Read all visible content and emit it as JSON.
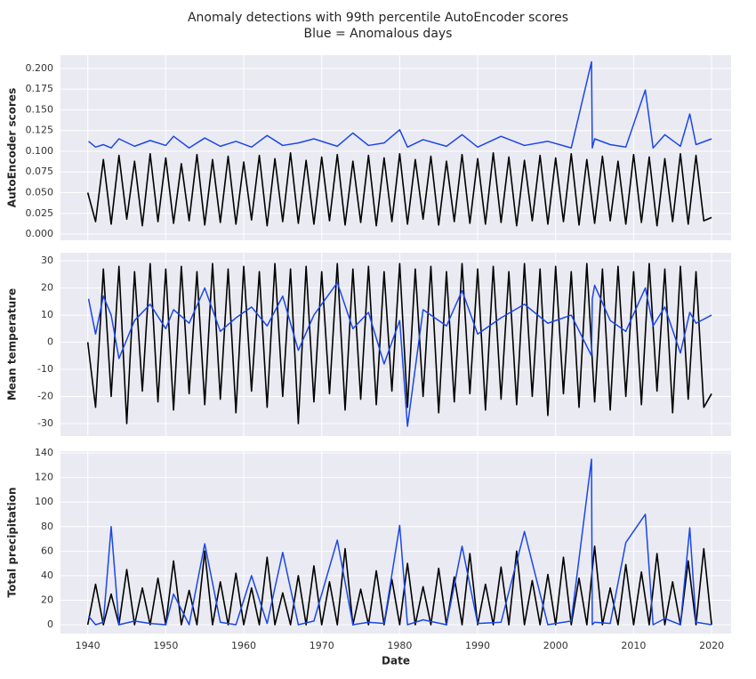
{
  "title": "Anomaly detections with 99th percentile AutoEncoder scores",
  "subtitle": "Blue = Anomalous days",
  "chart_data": [
    {
      "type": "line",
      "ylabel": "AutoEncoder scores",
      "grid": true,
      "show_xticklabels": false,
      "xlim": [
        1936.5,
        2022.5
      ],
      "xticks": [
        1940,
        1950,
        1960,
        1970,
        1980,
        1990,
        2000,
        2010,
        2020
      ],
      "ylim": [
        -0.0075,
        0.216
      ],
      "yticks": [
        {
          "value": 0,
          "label": "0.000"
        },
        {
          "value": 0.025,
          "label": "0.025"
        },
        {
          "value": 0.05,
          "label": "0.050"
        },
        {
          "value": 0.075,
          "label": "0.075"
        },
        {
          "value": 0.1,
          "label": "0.100"
        },
        {
          "value": 0.125,
          "label": "0.125"
        },
        {
          "value": 0.15,
          "label": "0.150"
        },
        {
          "value": 0.175,
          "label": "0.175"
        },
        {
          "value": 0.2,
          "label": "0.200"
        }
      ],
      "series": [
        {
          "color": "#000000",
          "x": [
            1940,
            1941,
            1942,
            1943,
            1944,
            1945,
            1946,
            1947,
            1948,
            1949,
            1950,
            1951,
            1952,
            1953,
            1954,
            1955,
            1956,
            1957,
            1958,
            1959,
            1960,
            1961,
            1962,
            1963,
            1964,
            1965,
            1966,
            1967,
            1968,
            1969,
            1970,
            1971,
            1972,
            1973,
            1974,
            1975,
            1976,
            1977,
            1978,
            1979,
            1980,
            1981,
            1982,
            1983,
            1984,
            1985,
            1986,
            1987,
            1988,
            1989,
            1990,
            1991,
            1992,
            1993,
            1994,
            1995,
            1996,
            1997,
            1998,
            1999,
            2000,
            2001,
            2002,
            2003,
            2004,
            2005,
            2006,
            2007,
            2008,
            2009,
            2010,
            2011,
            2012,
            2013,
            2014,
            2015,
            2016,
            2017,
            2018,
            2019,
            2020
          ],
          "values": [
            0.05,
            0.015,
            0.09,
            0.012,
            0.095,
            0.018,
            0.088,
            0.01,
            0.097,
            0.015,
            0.092,
            0.013,
            0.085,
            0.016,
            0.096,
            0.011,
            0.09,
            0.014,
            0.094,
            0.012,
            0.087,
            0.017,
            0.095,
            0.01,
            0.091,
            0.015,
            0.098,
            0.013,
            0.089,
            0.012,
            0.093,
            0.016,
            0.096,
            0.011,
            0.088,
            0.014,
            0.095,
            0.01,
            0.092,
            0.015,
            0.097,
            0.012,
            0.09,
            0.018,
            0.094,
            0.011,
            0.088,
            0.015,
            0.096,
            0.013,
            0.091,
            0.012,
            0.098,
            0.014,
            0.093,
            0.01,
            0.089,
            0.016,
            0.095,
            0.012,
            0.092,
            0.015,
            0.097,
            0.011,
            0.09,
            0.013,
            0.094,
            0.016,
            0.088,
            0.012,
            0.096,
            0.014,
            0.093,
            0.01,
            0.091,
            0.015,
            0.097,
            0.012,
            0.095,
            0.016,
            0.02
          ]
        },
        {
          "color": "#1a47e8",
          "x": [
            1940.1,
            1941,
            1942,
            1943,
            1944,
            1946,
            1948,
            1950,
            1951,
            1953,
            1955,
            1957,
            1959,
            1961,
            1963,
            1965,
            1967,
            1969,
            1972,
            1974,
            1976,
            1978,
            1980,
            1981,
            1983,
            1986,
            1988,
            1990,
            1993,
            1996,
            1999,
            2002,
            2004.6,
            2004.7,
            2005,
            2007,
            2009,
            2011.5,
            2012.5,
            2014,
            2016,
            2017.2,
            2018,
            2020
          ],
          "values": [
            0.112,
            0.105,
            0.108,
            0.104,
            0.115,
            0.106,
            0.113,
            0.107,
            0.118,
            0.104,
            0.116,
            0.106,
            0.112,
            0.105,
            0.119,
            0.107,
            0.11,
            0.115,
            0.106,
            0.122,
            0.107,
            0.11,
            0.126,
            0.105,
            0.114,
            0.106,
            0.12,
            0.105,
            0.118,
            0.107,
            0.112,
            0.104,
            0.208,
            0.104,
            0.115,
            0.108,
            0.105,
            0.174,
            0.104,
            0.12,
            0.106,
            0.145,
            0.108,
            0.115
          ]
        }
      ]
    },
    {
      "type": "line",
      "ylabel": "Mean temperature",
      "grid": true,
      "show_xticklabels": false,
      "xlim": [
        1936.5,
        2022.5
      ],
      "xticks": [
        1940,
        1950,
        1960,
        1970,
        1980,
        1990,
        2000,
        2010,
        2020
      ],
      "ylim": [
        -34.6,
        33
      ],
      "yticks": [
        -30,
        -20,
        -10,
        0,
        10,
        20,
        30
      ],
      "series": [
        {
          "color": "#000000",
          "x": [
            1940,
            1941,
            1942,
            1943,
            1944,
            1945,
            1946,
            1947,
            1948,
            1949,
            1950,
            1951,
            1952,
            1953,
            1954,
            1955,
            1956,
            1957,
            1958,
            1959,
            1960,
            1961,
            1962,
            1963,
            1964,
            1965,
            1966,
            1967,
            1968,
            1969,
            1970,
            1971,
            1972,
            1973,
            1974,
            1975,
            1976,
            1977,
            1978,
            1979,
            1980,
            1981,
            1982,
            1983,
            1984,
            1985,
            1986,
            1987,
            1988,
            1989,
            1990,
            1991,
            1992,
            1993,
            1994,
            1995,
            1996,
            1997,
            1998,
            1999,
            2000,
            2001,
            2002,
            2003,
            2004,
            2005,
            2006,
            2007,
            2008,
            2009,
            2010,
            2011,
            2012,
            2013,
            2014,
            2015,
            2016,
            2017,
            2018,
            2019,
            2020
          ],
          "values": [
            0,
            -24,
            27,
            -20,
            28,
            -30,
            26,
            -18,
            29,
            -22,
            27,
            -25,
            28,
            -19,
            26,
            -23,
            29,
            -21,
            27,
            -26,
            28,
            -18,
            26,
            -24,
            29,
            -20,
            27,
            -30,
            28,
            -22,
            26,
            -19,
            29,
            -25,
            27,
            -21,
            28,
            -23,
            26,
            -18,
            29,
            -24,
            27,
            -20,
            28,
            -26,
            26,
            -22,
            29,
            -19,
            27,
            -25,
            28,
            -21,
            26,
            -23,
            29,
            -20,
            27,
            -27,
            28,
            -19,
            26,
            -24,
            29,
            -22,
            27,
            -25,
            28,
            -20,
            26,
            -23,
            29,
            -18,
            27,
            -26,
            28,
            -21,
            26,
            -24,
            -19
          ]
        },
        {
          "color": "#1a47e8",
          "x": [
            1940.1,
            1941,
            1942,
            1943,
            1944,
            1946,
            1948,
            1950,
            1951,
            1953,
            1955,
            1957,
            1959,
            1961,
            1963,
            1965,
            1967,
            1969,
            1972,
            1974,
            1976,
            1978,
            1980,
            1981,
            1983,
            1986,
            1988,
            1990,
            1993,
            1996,
            1999,
            2002,
            2004.6,
            2004.7,
            2005,
            2007,
            2009,
            2011.5,
            2012.5,
            2014,
            2016,
            2017.2,
            2018,
            2020
          ],
          "values": [
            16,
            3,
            17,
            10,
            -6,
            8,
            14,
            5,
            12,
            7,
            20,
            4,
            9,
            13,
            6,
            17,
            -3,
            10,
            22,
            5,
            11,
            -8,
            8,
            -31,
            12,
            6,
            19,
            3,
            9,
            14,
            7,
            10,
            -5,
            16,
            21,
            8,
            4,
            20,
            6,
            13,
            -4,
            11,
            7,
            10
          ]
        }
      ]
    },
    {
      "type": "line",
      "ylabel": "Total precipitation",
      "xlabel": "Date",
      "grid": true,
      "show_xticklabels": true,
      "xlim": [
        1936.5,
        2022.5
      ],
      "xticks": [
        1940,
        1950,
        1960,
        1970,
        1980,
        1990,
        2000,
        2010,
        2020
      ],
      "ylim": [
        -7.25,
        141.5
      ],
      "yticks": [
        0,
        20,
        40,
        60,
        80,
        100,
        120,
        140
      ],
      "series": [
        {
          "color": "#000000",
          "x": [
            1940,
            1941,
            1942,
            1943,
            1944,
            1945,
            1946,
            1947,
            1948,
            1949,
            1950,
            1951,
            1952,
            1953,
            1954,
            1955,
            1956,
            1957,
            1958,
            1959,
            1960,
            1961,
            1962,
            1963,
            1964,
            1965,
            1966,
            1967,
            1968,
            1969,
            1970,
            1971,
            1972,
            1973,
            1974,
            1975,
            1976,
            1977,
            1978,
            1979,
            1980,
            1981,
            1982,
            1983,
            1984,
            1985,
            1986,
            1987,
            1988,
            1989,
            1990,
            1991,
            1992,
            1993,
            1994,
            1995,
            1996,
            1997,
            1998,
            1999,
            2000,
            2001,
            2002,
            2003,
            2004,
            2005,
            2006,
            2007,
            2008,
            2009,
            2010,
            2011,
            2012,
            2013,
            2014,
            2015,
            2016,
            2017,
            2018,
            2019,
            2020
          ],
          "values": [
            0,
            33,
            0,
            25,
            0,
            45,
            0,
            30,
            0,
            38,
            0,
            52,
            0,
            28,
            0,
            60,
            0,
            35,
            0,
            42,
            0,
            30,
            0,
            55,
            0,
            26,
            0,
            40,
            0,
            48,
            0,
            35,
            0,
            62,
            0,
            29,
            0,
            44,
            0,
            37,
            0,
            50,
            0,
            31,
            0,
            46,
            0,
            39,
            0,
            58,
            0,
            33,
            0,
            47,
            0,
            60,
            0,
            36,
            0,
            41,
            0,
            55,
            0,
            38,
            0,
            64,
            0,
            30,
            0,
            49,
            0,
            43,
            0,
            58,
            0,
            35,
            0,
            52,
            0,
            62,
            0
          ]
        },
        {
          "color": "#1a47e8",
          "x": [
            1940.1,
            1941,
            1942,
            1943,
            1944,
            1946,
            1948,
            1950,
            1951,
            1953,
            1955,
            1957,
            1959,
            1961,
            1963,
            1965,
            1967,
            1969,
            1972,
            1974,
            1976,
            1978,
            1980,
            1981,
            1983,
            1986,
            1988,
            1990,
            1993,
            1996,
            1999,
            2002,
            2004.6,
            2004.7,
            2005,
            2007,
            2009,
            2011.5,
            2012.5,
            2014,
            2016,
            2017.2,
            2018,
            2020
          ],
          "values": [
            7,
            0,
            2,
            80,
            0,
            3,
            1,
            0,
            25,
            0,
            66,
            2,
            0,
            40,
            1,
            59,
            0,
            3,
            69,
            0,
            2,
            1,
            81,
            0,
            4,
            0,
            64,
            1,
            2,
            76,
            0,
            3,
            135,
            0,
            2,
            1,
            67,
            90,
            0,
            5,
            0,
            79,
            2,
            0
          ]
        }
      ]
    }
  ]
}
